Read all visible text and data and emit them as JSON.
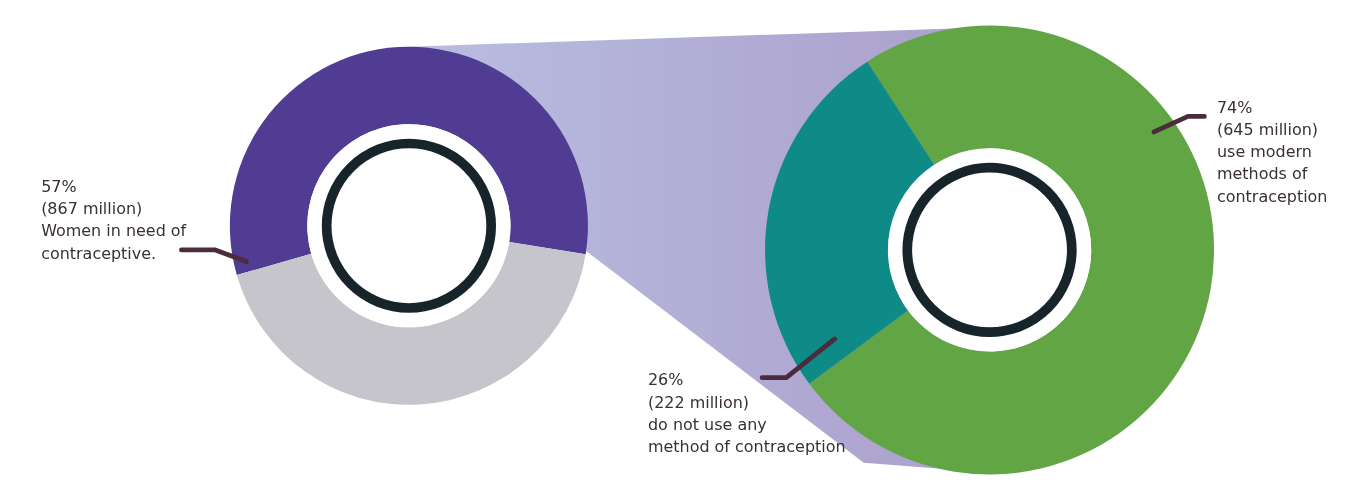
{
  "chart_data": [
    {
      "type": "donut",
      "categories": [
        "Women in need of contraceptive.",
        null
      ],
      "values": [
        57,
        43
      ],
      "colors": [
        "#503c92",
        "#c6c5cc"
      ],
      "value_labels": [
        "57%\n(867 million)",
        null
      ]
    },
    {
      "type": "donut",
      "categories": [
        "use modern methods of contraception",
        "do not use any method of contraception"
      ],
      "values": [
        74,
        26
      ],
      "colors": [
        "#62a544",
        "#0e8a87"
      ],
      "value_labels": [
        "74%\n(645 million)",
        "26%\n(222 million)"
      ]
    }
  ]
}
